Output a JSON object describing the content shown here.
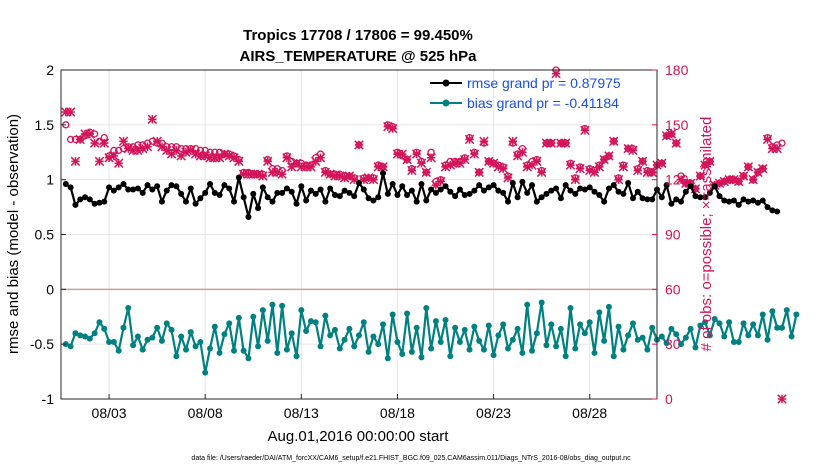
{
  "chart_data": {
    "type": "line",
    "title": "Tropics 17708 / 17806 = 99.450%",
    "subtitle": "AIRS_TEMPERATURE @ 525 hPa",
    "xlabel": "Aug.01,2016 00:00:00 start",
    "ylabel_left": "rmse and bias (model - observation)",
    "ylabel_right": "# of obs: o=possible; ×=assimilated",
    "footer": "data file: /Users/raeder/DAI/ATM_forcXX/CAM6_setup/f.e21.FHIST_BGC.f09_025.CAM6assim.011/Diags_NTrS_2016-08/obs_diag_output.nc",
    "xlim": [
      0.5,
      31.5
    ],
    "ylim_left": [
      -1,
      2
    ],
    "ylim_right": [
      0,
      180
    ],
    "xticks": [
      {
        "day": 3,
        "label": "08/03"
      },
      {
        "day": 8,
        "label": "08/08"
      },
      {
        "day": 13,
        "label": "08/13"
      },
      {
        "day": 18,
        "label": "08/18"
      },
      {
        "day": 23,
        "label": "08/23"
      },
      {
        "day": 28,
        "label": "08/28"
      }
    ],
    "yticks_left": [
      "-1",
      "-0.5",
      "0",
      "0.5",
      "1",
      "1.5",
      "2"
    ],
    "yticks_right": [
      "0",
      "30",
      "60",
      "90",
      "120",
      "150",
      "180"
    ],
    "legend": [
      {
        "name": "rmse grand pr = 0.87975",
        "color": "#000000"
      },
      {
        "name": "bias grand pr = -0.41184",
        "color": "#008080"
      }
    ],
    "legend_text_color": "#1a4ee6",
    "colors": {
      "rmse": "#000000",
      "bias": "#008080",
      "obs": "#d4145a",
      "zero_line": "#c9a0a0",
      "grid": "#e6e6e6"
    },
    "series_x_start": 0.75,
    "series_x_step": 0.25,
    "series": [
      {
        "name": "rmse",
        "values": [
          0.96,
          0.93,
          0.77,
          0.82,
          0.84,
          0.82,
          0.78,
          0.79,
          0.8,
          0.93,
          0.9,
          0.93,
          0.96,
          0.91,
          0.91,
          0.92,
          0.88,
          0.95,
          0.91,
          0.94,
          0.8,
          0.9,
          0.95,
          0.94,
          0.87,
          0.8,
          0.92,
          0.78,
          0.83,
          0.88,
          0.96,
          0.88,
          0.86,
          0.95,
          0.92,
          0.8,
          1.02,
          0.84,
          0.66,
          0.87,
          0.74,
          0.93,
          0.84,
          0.8,
          0.88,
          0.88,
          0.92,
          0.89,
          0.78,
          0.94,
          0.81,
          0.9,
          0.87,
          0.91,
          0.8,
          0.92,
          0.86,
          0.85,
          0.9,
          0.88,
          0.85,
          0.97,
          0.91,
          0.83,
          0.81,
          0.84,
          1.06,
          0.87,
          0.96,
          0.86,
          0.94,
          0.86,
          0.9,
          0.8,
          0.96,
          0.81,
          0.91,
          0.88,
          0.91,
          0.94,
          0.89,
          0.85,
          0.91,
          0.86,
          0.87,
          0.9,
          0.95,
          0.9,
          0.93,
          0.95,
          0.9,
          0.88,
          0.8,
          0.97,
          0.84,
          0.98,
          0.88,
          0.95,
          0.8,
          0.84,
          0.87,
          0.9,
          0.92,
          0.83,
          0.95,
          0.9,
          0.87,
          0.92,
          0.91,
          0.93,
          0.89,
          0.86,
          0.8,
          0.92,
          0.95,
          0.89,
          0.87,
          0.97,
          0.83,
          0.89,
          0.83,
          0.82,
          0.82,
          0.91,
          0.84,
          0.95,
          0.78,
          0.82,
          0.8,
          0.89,
          0.94,
          0.85,
          0.84,
          0.84,
          0.88,
          0.94,
          0.85,
          0.81,
          0.8,
          0.81,
          0.77,
          0.82,
          0.8,
          0.81,
          0.79,
          0.81,
          0.75,
          0.72,
          0.71
        ]
      },
      {
        "name": "bias",
        "values": [
          -0.5,
          -0.52,
          -0.4,
          -0.42,
          -0.43,
          -0.45,
          -0.4,
          -0.3,
          -0.36,
          -0.48,
          -0.48,
          -0.56,
          -0.35,
          -0.17,
          -0.51,
          -0.43,
          -0.55,
          -0.46,
          -0.44,
          -0.35,
          -0.47,
          -0.31,
          -0.37,
          -0.61,
          -0.43,
          -0.55,
          -0.39,
          -0.52,
          -0.48,
          -0.76,
          -0.54,
          -0.34,
          -0.58,
          -0.41,
          -0.31,
          -0.56,
          -0.26,
          -0.56,
          -0.63,
          -0.25,
          -0.52,
          -0.19,
          -0.47,
          -0.14,
          -0.58,
          -0.15,
          -0.55,
          -0.4,
          -0.61,
          -0.19,
          -0.38,
          -0.29,
          -0.3,
          -0.52,
          -0.24,
          -0.42,
          -0.37,
          -0.54,
          -0.46,
          -0.36,
          -0.52,
          -0.42,
          -0.3,
          -0.57,
          -0.43,
          -0.5,
          -0.32,
          -0.63,
          -0.23,
          -0.48,
          -0.59,
          -0.22,
          -0.57,
          -0.35,
          -0.62,
          -0.17,
          -0.54,
          -0.29,
          -0.48,
          -0.28,
          -0.61,
          -0.35,
          -0.48,
          -0.37,
          -0.55,
          -0.34,
          -0.47,
          -0.55,
          -0.33,
          -0.6,
          -0.42,
          -0.32,
          -0.54,
          -0.46,
          -0.36,
          -0.58,
          -0.14,
          -0.56,
          -0.4,
          -0.12,
          -0.51,
          -0.32,
          -0.52,
          -0.36,
          -0.61,
          -0.17,
          -0.54,
          -0.32,
          -0.4,
          -0.3,
          -0.58,
          -0.21,
          -0.47,
          -0.16,
          -0.61,
          -0.34,
          -0.55,
          -0.42,
          -0.31,
          -0.46,
          -0.44,
          -0.55,
          -0.35,
          -0.46,
          -0.43,
          -0.49,
          -0.36,
          -0.41,
          -0.5,
          -0.44,
          -0.36,
          -0.53,
          -0.33,
          -0.3,
          -0.42,
          -0.27,
          -0.31,
          -0.43,
          -0.3,
          -0.48,
          -0.48,
          -0.31,
          -0.42,
          -0.32,
          -0.42,
          -0.23,
          -0.46,
          -0.2,
          -0.35,
          -0.35,
          -0.19,
          -0.43,
          -0.23
        ]
      },
      {
        "name": "obs_possible",
        "values": [
          150,
          142,
          142,
          142,
          144,
          146,
          145,
          141,
          143,
          133,
          136,
          136,
          137,
          138,
          138,
          139,
          139,
          140,
          141,
          140,
          140,
          138,
          138,
          138,
          137,
          137,
          137,
          137,
          136,
          136,
          135,
          135,
          135,
          134,
          134,
          133,
          131,
          124,
          124,
          123,
          123,
          123,
          131,
          126,
          126,
          125,
          133,
          130,
          129,
          129,
          128,
          128,
          132,
          134,
          125,
          123,
          123,
          123,
          122,
          122,
          121,
          139,
          121,
          121,
          121,
          128,
          127,
          150,
          149,
          135,
          133,
          131,
          126,
          135,
          130,
          124,
          135,
          119,
          120,
          128,
          130,
          130,
          130,
          132,
          143,
          135,
          124,
          140,
          130,
          129,
          128,
          127,
          122,
          140,
          134,
          137,
          128,
          130,
          131,
          125,
          140,
          140,
          180,
          140,
          140,
          129,
          121,
          127,
          148,
          126,
          125,
          128,
          131,
          133,
          141,
          121,
          128,
          137,
          137,
          126,
          130,
          125,
          124,
          128,
          129,
          144,
          145,
          140,
          122,
          118,
          118,
          115,
          122,
          128,
          130,
          117,
          118,
          119,
          120,
          120,
          119,
          122,
          127,
          120,
          124,
          126,
          143,
          138,
          139,
          140
        ]
      },
      {
        "name": "obs_assimilated",
        "values": [
          157,
          157,
          130,
          142,
          145,
          145,
          140,
          130,
          140,
          132,
          133,
          129,
          141,
          137,
          136,
          136,
          137,
          138,
          153,
          141,
          138,
          136,
          134,
          136,
          133,
          135,
          136,
          134,
          133,
          133,
          132,
          132,
          132,
          134,
          133,
          132,
          130,
          123,
          123,
          123,
          123,
          122,
          130,
          124,
          124,
          123,
          132,
          127,
          129,
          127,
          127,
          127,
          130,
          132,
          124,
          123,
          122,
          122,
          121,
          122,
          120,
          139,
          120,
          121,
          120,
          127,
          127,
          149,
          148,
          134,
          134,
          131,
          125,
          134,
          129,
          124,
          132,
          117,
          119,
          127,
          128,
          129,
          129,
          131,
          142,
          134,
          124,
          141,
          130,
          129,
          127,
          126,
          121,
          141,
          133,
          135,
          127,
          128,
          130,
          124,
          140,
          140,
          178,
          140,
          140,
          128,
          120,
          126,
          147,
          125,
          124,
          127,
          131,
          133,
          141,
          120,
          127,
          137,
          136,
          125,
          130,
          124,
          124,
          128,
          129,
          144,
          145,
          140,
          120,
          118,
          118,
          115,
          122,
          128,
          130,
          117,
          118,
          119,
          120,
          120,
          119,
          122,
          127,
          120,
          124,
          126,
          142,
          137,
          137,
          0
        ]
      }
    ]
  }
}
